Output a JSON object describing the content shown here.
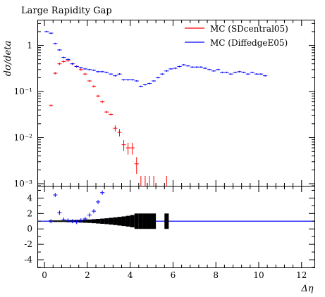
{
  "chart_data": {
    "type": "scatter",
    "title": "Large Rapidity Gap",
    "xlabel": "Δη",
    "ylabel": "dσ/deta",
    "xlim": [
      -0.3,
      12.6
    ],
    "ylim": [
      0.0009,
      3.5
    ],
    "yscale": "log",
    "legend_position": "top-right",
    "x_ticks": [
      "0",
      "2",
      "4",
      "6",
      "8",
      "10",
      "12"
    ],
    "y_ticks": [
      "10⁻³",
      "10⁻²",
      "10⁻¹",
      "1"
    ],
    "series": [
      {
        "name": "MC (SDcentral05)",
        "color": "#ff0000",
        "x": [
          0.3,
          0.5,
          0.7,
          0.9,
          1.1,
          1.3,
          1.5,
          1.7,
          1.9,
          2.1,
          2.3,
          2.5,
          2.7,
          2.9,
          3.1,
          3.3,
          3.5,
          3.7,
          3.9,
          4.1,
          4.3
        ],
        "y": [
          0.05,
          0.25,
          0.4,
          0.45,
          0.47,
          0.4,
          0.35,
          0.3,
          0.24,
          0.17,
          0.13,
          0.08,
          0.06,
          0.036,
          0.032,
          0.016,
          0.013,
          0.007,
          0.006,
          0.006,
          0.0027
        ]
      },
      {
        "name": "MC (DiffedgeE05)",
        "color": "#0000ff",
        "x": [
          0.1,
          0.3,
          0.5,
          0.7,
          0.9,
          1.1,
          1.3,
          1.5,
          1.7,
          1.9,
          2.1,
          2.3,
          2.5,
          2.7,
          2.9,
          3.1,
          3.3,
          3.5,
          3.7,
          3.9,
          4.1,
          4.3,
          4.5,
          4.7,
          4.9,
          5.1,
          5.3,
          5.5,
          5.7,
          5.9,
          6.1,
          6.3,
          6.5,
          6.7,
          6.9,
          7.1,
          7.3,
          7.5,
          7.7,
          7.9,
          8.1,
          8.3,
          8.5,
          8.7,
          8.9,
          9.1,
          9.3,
          9.5,
          9.7,
          9.9,
          10.1,
          10.3
        ],
        "y": [
          2.0,
          1.85,
          1.1,
          0.8,
          0.55,
          0.5,
          0.4,
          0.35,
          0.33,
          0.31,
          0.3,
          0.29,
          0.27,
          0.27,
          0.26,
          0.24,
          0.22,
          0.24,
          0.18,
          0.18,
          0.18,
          0.17,
          0.13,
          0.14,
          0.15,
          0.17,
          0.2,
          0.24,
          0.28,
          0.31,
          0.32,
          0.35,
          0.38,
          0.36,
          0.34,
          0.34,
          0.34,
          0.32,
          0.3,
          0.28,
          0.3,
          0.26,
          0.26,
          0.24,
          0.26,
          0.27,
          0.26,
          0.24,
          0.26,
          0.24,
          0.24,
          0.22
        ]
      }
    ],
    "ratio_panel": {
      "ylim": [
        -5,
        5.5
      ],
      "y_ticks": [
        "-4",
        "-2",
        "0",
        "2",
        "4"
      ],
      "reference_line": 1,
      "points": {
        "name": "MC (DiffedgeE05)",
        "x": [
          0.3,
          0.5,
          0.7,
          0.9,
          1.1,
          1.3,
          1.5,
          1.7,
          1.9,
          2.1,
          2.3,
          2.5,
          2.7
        ],
        "y": [
          1.0,
          4.4,
          2.1,
          1.2,
          1.1,
          1.0,
          0.9,
          1.1,
          1.3,
          1.8,
          2.3,
          3.5,
          4.7
        ]
      }
    }
  }
}
